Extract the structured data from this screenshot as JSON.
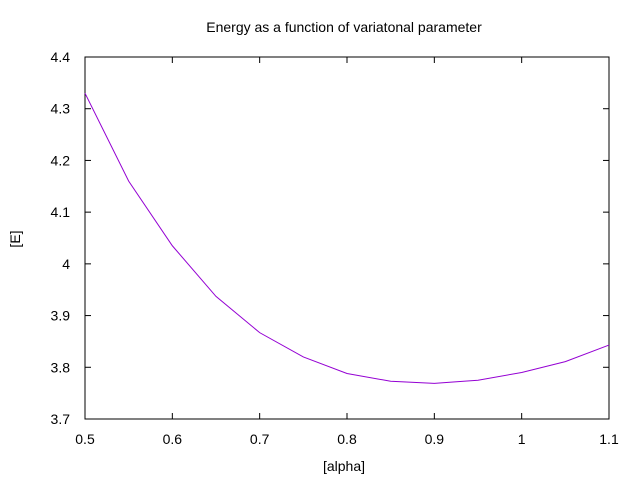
{
  "chart_data": {
    "type": "line",
    "title": "Energy as a function of variatonal parameter",
    "xlabel": "[alpha]",
    "ylabel": "[E]",
    "xlim": [
      0.5,
      1.1
    ],
    "ylim": [
      3.7,
      4.4
    ],
    "x_ticks": [
      0.5,
      0.6,
      0.7,
      0.8,
      0.9,
      1.0,
      1.1
    ],
    "x_tick_labels": [
      "0.5",
      "0.6",
      "0.7",
      "0.8",
      "0.9",
      "1",
      "1.1"
    ],
    "y_ticks": [
      3.7,
      3.8,
      3.9,
      4.0,
      4.1,
      4.2,
      4.3,
      4.4
    ],
    "y_tick_labels": [
      "3.7",
      "3.8",
      "3.9",
      "4",
      "4.1",
      "4.2",
      "4.3",
      "4.4"
    ],
    "grid": false,
    "legend": "none",
    "series": [
      {
        "color": "#9400d3",
        "x": [
          0.5,
          0.55,
          0.6,
          0.65,
          0.7,
          0.75,
          0.8,
          0.85,
          0.9,
          0.95,
          1.0,
          1.05,
          1.1
        ],
        "y": [
          4.33,
          4.16,
          4.035,
          3.937,
          3.867,
          3.82,
          3.788,
          3.773,
          3.769,
          3.775,
          3.79,
          3.811,
          3.843
        ]
      }
    ]
  }
}
